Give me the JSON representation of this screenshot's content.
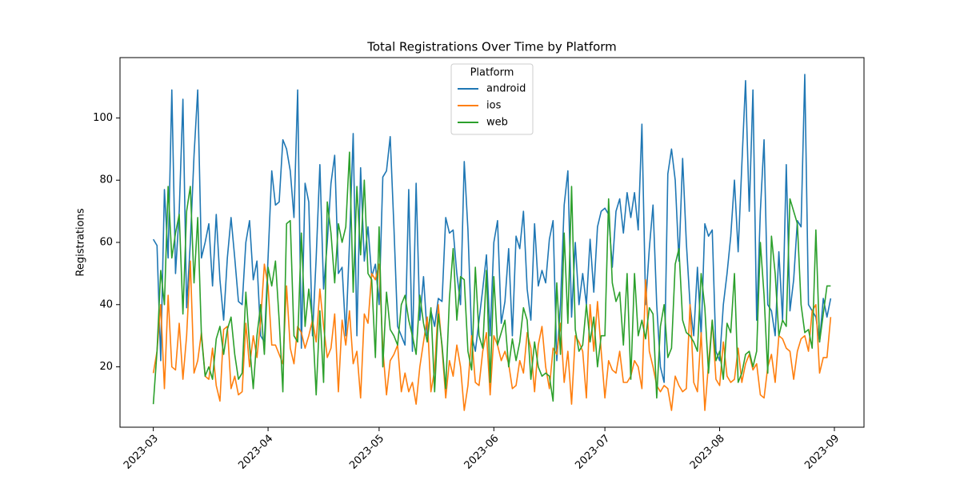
{
  "chart_data": {
    "type": "line",
    "title": "Total Registrations Over Time by Platform",
    "ylabel": "Registrations",
    "legend": {
      "title": "Platform",
      "loc": "upper center"
    },
    "x": [
      "2023-03-01",
      "2023-03-02",
      "2023-03-03",
      "2023-03-04",
      "2023-03-05",
      "2023-03-06",
      "2023-03-07",
      "2023-03-08",
      "2023-03-09",
      "2023-03-10",
      "2023-03-11",
      "2023-03-12",
      "2023-03-13",
      "2023-03-14",
      "2023-03-15",
      "2023-03-16",
      "2023-03-17",
      "2023-03-18",
      "2023-03-19",
      "2023-03-20",
      "2023-03-21",
      "2023-03-22",
      "2023-03-23",
      "2023-03-24",
      "2023-03-25",
      "2023-03-26",
      "2023-03-27",
      "2023-03-28",
      "2023-03-29",
      "2023-03-30",
      "2023-03-31",
      "2023-04-01",
      "2023-04-02",
      "2023-04-03",
      "2023-04-04",
      "2023-04-05",
      "2023-04-06",
      "2023-04-07",
      "2023-04-08",
      "2023-04-09",
      "2023-04-10",
      "2023-04-11",
      "2023-04-12",
      "2023-04-13",
      "2023-04-14",
      "2023-04-15",
      "2023-04-16",
      "2023-04-17",
      "2023-04-18",
      "2023-04-19",
      "2023-04-20",
      "2023-04-21",
      "2023-04-22",
      "2023-04-23",
      "2023-04-24",
      "2023-04-25",
      "2023-04-26",
      "2023-04-27",
      "2023-04-28",
      "2023-04-29",
      "2023-04-30",
      "2023-05-01",
      "2023-05-02",
      "2023-05-03",
      "2023-05-04",
      "2023-05-05",
      "2023-05-06",
      "2023-05-07",
      "2023-05-08",
      "2023-05-09",
      "2023-05-10",
      "2023-05-11",
      "2023-05-12",
      "2023-05-13",
      "2023-05-14",
      "2023-05-15",
      "2023-05-16",
      "2023-05-17",
      "2023-05-18",
      "2023-05-19",
      "2023-05-20",
      "2023-05-21",
      "2023-05-22",
      "2023-05-23",
      "2023-05-24",
      "2023-05-25",
      "2023-05-26",
      "2023-05-27",
      "2023-05-28",
      "2023-05-29",
      "2023-05-30",
      "2023-05-31",
      "2023-06-01",
      "2023-06-02",
      "2023-06-03",
      "2023-06-04",
      "2023-06-05",
      "2023-06-06",
      "2023-06-07",
      "2023-06-08",
      "2023-06-09",
      "2023-06-10",
      "2023-06-11",
      "2023-06-12",
      "2023-06-13",
      "2023-06-14",
      "2023-06-15",
      "2023-06-16",
      "2023-06-17",
      "2023-06-18",
      "2023-06-19",
      "2023-06-20",
      "2023-06-21",
      "2023-06-22",
      "2023-06-23",
      "2023-06-24",
      "2023-06-25",
      "2023-06-26",
      "2023-06-27",
      "2023-06-28",
      "2023-06-29",
      "2023-06-30",
      "2023-07-01",
      "2023-07-02",
      "2023-07-03",
      "2023-07-04",
      "2023-07-05",
      "2023-07-06",
      "2023-07-07",
      "2023-07-08",
      "2023-07-09",
      "2023-07-10",
      "2023-07-11",
      "2023-07-12",
      "2023-07-13",
      "2023-07-14",
      "2023-07-15",
      "2023-07-16",
      "2023-07-17",
      "2023-07-18",
      "2023-07-19",
      "2023-07-20",
      "2023-07-21",
      "2023-07-22",
      "2023-07-23",
      "2023-07-24",
      "2023-07-25",
      "2023-07-26",
      "2023-07-27",
      "2023-07-28",
      "2023-07-29",
      "2023-07-30",
      "2023-07-31",
      "2023-08-01",
      "2023-08-02",
      "2023-08-03",
      "2023-08-04",
      "2023-08-05",
      "2023-08-06",
      "2023-08-07",
      "2023-08-08",
      "2023-08-09",
      "2023-08-10",
      "2023-08-11",
      "2023-08-12",
      "2023-08-13",
      "2023-08-14",
      "2023-08-15",
      "2023-08-16",
      "2023-08-17",
      "2023-08-18",
      "2023-08-19",
      "2023-08-20",
      "2023-08-21",
      "2023-08-22",
      "2023-08-23",
      "2023-08-24",
      "2023-08-25",
      "2023-08-26",
      "2023-08-27",
      "2023-08-28",
      "2023-08-29",
      "2023-08-30",
      "2023-08-31"
    ],
    "series": [
      {
        "name": "android",
        "color": "#1f77b4",
        "values": [
          61,
          59,
          22,
          77,
          55,
          109,
          50,
          70,
          106,
          39,
          60,
          88,
          109,
          55,
          60,
          66,
          46,
          69,
          48,
          35,
          55,
          68,
          55,
          41,
          40,
          60,
          67,
          48,
          54,
          30,
          28,
          55,
          83,
          72,
          73,
          93,
          90,
          83,
          68,
          109,
          26,
          79,
          73,
          30,
          55,
          85,
          45,
          60,
          79,
          88,
          50,
          52,
          30,
          60,
          95,
          30,
          84,
          54,
          65,
          49,
          53,
          40,
          81,
          83,
          94,
          65,
          33,
          30,
          27,
          77,
          25,
          79,
          35,
          49,
          30,
          38,
          33,
          42,
          41,
          68,
          63,
          64,
          50,
          40,
          86,
          64,
          30,
          25,
          35,
          45,
          56,
          30,
          60,
          67,
          34,
          41,
          58,
          30,
          62,
          58,
          70,
          45,
          35,
          66,
          46,
          51,
          47,
          61,
          67,
          22,
          40,
          72,
          83,
          36,
          60,
          40,
          50,
          40,
          61,
          44,
          65,
          70,
          71,
          69,
          52,
          70,
          74,
          63,
          76,
          68,
          76,
          64,
          98,
          40,
          58,
          72,
          40,
          20,
          15,
          82,
          90,
          80,
          54,
          87,
          60,
          40,
          30,
          52,
          30,
          66,
          62,
          64,
          25,
          22,
          40,
          50,
          62,
          80,
          57,
          85,
          112,
          70,
          109,
          35,
          70,
          93,
          40,
          38,
          30,
          57,
          35,
          85,
          38,
          48,
          67,
          65,
          114,
          40,
          38,
          36,
          28,
          42,
          36,
          42
        ]
      },
      {
        "name": "ios",
        "color": "#ff7f0e",
        "values": [
          18,
          25,
          40,
          13,
          43,
          20,
          19,
          34,
          16,
          30,
          54,
          18,
          22,
          31,
          17,
          16,
          26,
          14,
          9,
          32,
          33,
          13,
          17,
          11,
          12,
          34,
          20,
          30,
          23,
          35,
          53,
          46,
          27,
          27,
          24,
          21,
          46,
          26,
          21,
          33,
          31,
          26,
          30,
          35,
          28,
          45,
          33,
          23,
          26,
          37,
          12,
          35,
          27,
          38,
          21,
          25,
          10,
          37,
          34,
          50,
          48,
          53,
          26,
          11,
          22,
          24,
          27,
          12,
          18,
          12,
          15,
          8,
          20,
          28,
          36,
          12,
          19,
          40,
          26,
          10,
          22,
          17,
          27,
          20,
          6,
          14,
          30,
          15,
          14,
          25,
          31,
          11,
          30,
          27,
          22,
          25,
          21,
          13,
          14,
          22,
          18,
          31,
          26,
          12,
          27,
          33,
          20,
          13,
          26,
          24,
          34,
          15,
          25,
          8,
          30,
          28,
          25,
          10,
          40,
          25,
          41,
          25,
          10,
          22,
          19,
          18,
          25,
          15,
          15,
          17,
          22,
          20,
          13,
          48,
          25,
          20,
          14,
          12,
          14,
          13,
          6,
          17,
          14,
          12,
          13,
          40,
          15,
          12,
          31,
          6,
          21,
          35,
          16,
          14,
          28,
          17,
          15,
          16,
          26,
          15,
          21,
          24,
          19,
          21,
          11,
          10,
          20,
          24,
          15,
          30,
          29,
          26,
          25,
          16,
          25,
          29,
          30,
          25,
          38,
          40,
          18,
          23,
          23,
          36
        ]
      },
      {
        "name": "web",
        "color": "#2ca02c",
        "values": [
          8,
          25,
          51,
          40,
          78,
          55,
          63,
          69,
          37,
          70,
          78,
          47,
          68,
          30,
          17,
          20,
          16,
          29,
          33,
          24,
          32,
          36,
          24,
          16,
          18,
          44,
          27,
          13,
          30,
          40,
          24,
          52,
          46,
          54,
          35,
          12,
          66,
          67,
          30,
          28,
          63,
          33,
          45,
          35,
          11,
          38,
          15,
          73,
          63,
          47,
          66,
          60,
          65,
          89,
          44,
          78,
          56,
          80,
          50,
          48,
          23,
          65,
          20,
          44,
          32,
          30,
          27,
          40,
          43,
          35,
          30,
          24,
          43,
          34,
          28,
          39,
          12,
          37,
          27,
          13,
          42,
          58,
          35,
          49,
          48,
          25,
          19,
          52,
          30,
          26,
          51,
          15,
          49,
          27,
          31,
          35,
          20,
          29,
          22,
          28,
          39,
          35,
          16,
          28,
          20,
          17,
          18,
          17,
          9,
          47,
          24,
          63,
          34,
          78,
          32,
          25,
          27,
          40,
          28,
          36,
          20,
          30,
          30,
          74,
          47,
          41,
          44,
          27,
          50,
          16,
          50,
          30,
          35,
          29,
          39,
          37,
          10,
          33,
          40,
          23,
          26,
          53,
          58,
          35,
          31,
          30,
          28,
          25,
          50,
          39,
          18,
          35,
          22,
          25,
          16,
          34,
          31,
          50,
          15,
          18,
          24,
          25,
          20,
          25,
          60,
          43,
          18,
          62,
          50,
          30,
          35,
          33,
          74,
          70,
          66,
          40,
          31,
          32,
          26,
          64,
          28,
          37,
          46,
          46
        ]
      }
    ],
    "xlim": [
      "2023-02-20",
      "2023-09-09"
    ],
    "xticks": [
      {
        "value": "2023-03-01",
        "label": "2023-03"
      },
      {
        "value": "2023-04-01",
        "label": "2023-04"
      },
      {
        "value": "2023-05-01",
        "label": "2023-05"
      },
      {
        "value": "2023-06-01",
        "label": "2023-06"
      },
      {
        "value": "2023-07-01",
        "label": "2023-07"
      },
      {
        "value": "2023-08-01",
        "label": "2023-08"
      },
      {
        "value": "2023-09-01",
        "label": "2023-09"
      }
    ],
    "ylim": [
      0.6,
      119.4
    ],
    "yticks": [
      20,
      40,
      60,
      80,
      100
    ],
    "grid": false
  }
}
